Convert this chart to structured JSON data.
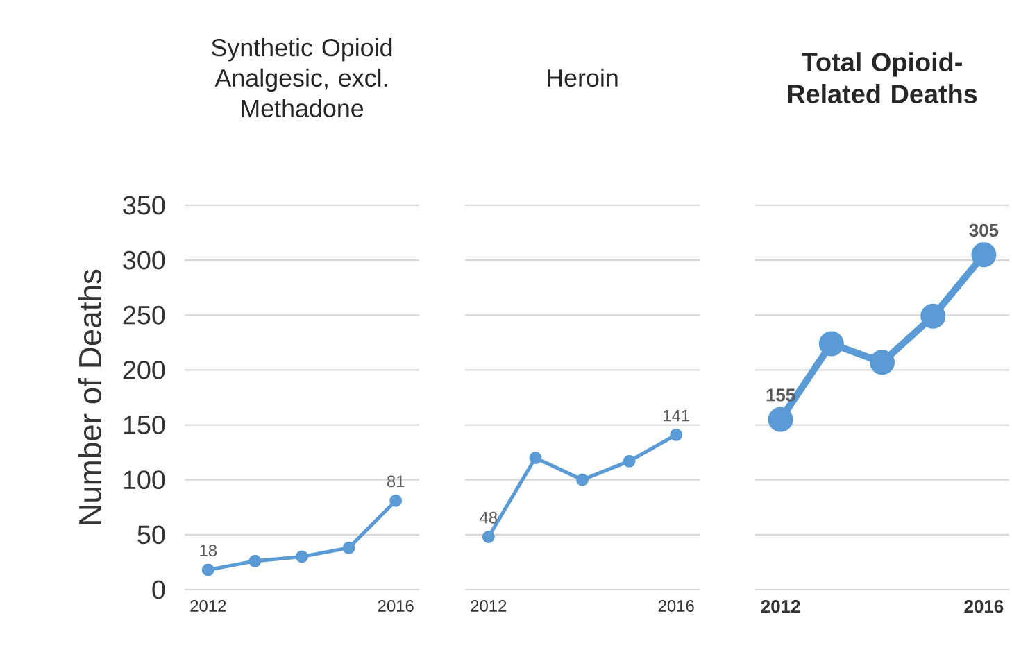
{
  "chart_data": [
    {
      "type": "line",
      "title": "Synthetic Opioid Analgesic, excl. Methadone",
      "ylabel": "Number of Deaths",
      "categories": [
        "2012",
        null,
        null,
        null,
        "2016"
      ],
      "series": [
        {
          "color": "#5b9bd5",
          "values": [
            18,
            26,
            30,
            38,
            81
          ],
          "value_labels": [
            "18",
            null,
            null,
            null,
            "81"
          ]
        }
      ],
      "ylim": [
        0,
        350
      ],
      "yticks": [
        0,
        50,
        100,
        150,
        200,
        250,
        300,
        350
      ],
      "grid": "y",
      "marker": "circle"
    },
    {
      "type": "line",
      "title": "Heroin",
      "categories": [
        "2012",
        null,
        null,
        null,
        "2016"
      ],
      "series": [
        {
          "color": "#5b9bd5",
          "values": [
            48,
            120,
            100,
            117,
            141
          ],
          "value_labels": [
            "48",
            null,
            null,
            null,
            "141"
          ]
        }
      ],
      "ylim": [
        0,
        350
      ],
      "yticks": [
        0,
        50,
        100,
        150,
        200,
        250,
        300,
        350
      ],
      "grid": "y",
      "marker": "circle",
      "tick_labels": "x"
    },
    {
      "type": "line",
      "title": "Total Opioid-Related Deaths",
      "categories": [
        "2012",
        null,
        null,
        null,
        "2016"
      ],
      "series": [
        {
          "color": "#5b9bd5",
          "values": [
            155,
            224,
            207,
            249,
            305
          ],
          "value_labels": [
            "155",
            null,
            null,
            null,
            "305"
          ]
        }
      ],
      "ylim": [
        0,
        350
      ],
      "yticks": [
        0,
        50,
        100,
        150,
        200,
        250,
        300,
        350
      ],
      "grid": "y",
      "marker": "circle",
      "tick_labels": "x"
    }
  ]
}
